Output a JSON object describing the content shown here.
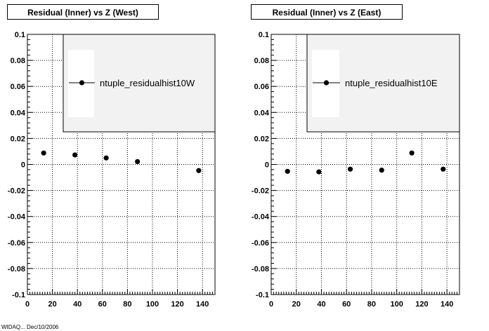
{
  "chart_data": [
    {
      "type": "scatter",
      "title": "Residual (Inner) vs Z (West)",
      "xlabel": "",
      "ylabel": "",
      "xlim": [
        0,
        150
      ],
      "ylim": [
        -0.1,
        0.1
      ],
      "xticks": [
        0,
        20,
        40,
        60,
        80,
        100,
        120,
        140
      ],
      "xtick_labels": [
        "0",
        "20",
        "40",
        "60",
        "80",
        "100",
        "120",
        "140"
      ],
      "yticks": [
        -0.1,
        -0.08,
        -0.06,
        -0.04,
        -0.02,
        0,
        0.02,
        0.04,
        0.06,
        0.08,
        0.1
      ],
      "ytick_labels": [
        "-0.1",
        "-0.08",
        "-0.06",
        "-0.04",
        "-0.02",
        "0",
        "0.02",
        "0.04",
        "0.06",
        "0.08",
        "0.1"
      ],
      "grid": true,
      "legend": "top-right",
      "series": [
        {
          "name": "ntuple_residualhist10W",
          "color": "#000000",
          "x": [
            13,
            38,
            63,
            88,
            137
          ],
          "y": [
            0.0088,
            0.0073,
            0.005,
            0.0022,
            -0.0047
          ]
        }
      ]
    },
    {
      "type": "scatter",
      "title": "Residual (Inner) vs Z (East)",
      "xlabel": "",
      "ylabel": "",
      "xlim": [
        0,
        150
      ],
      "ylim": [
        -0.1,
        0.1
      ],
      "xticks": [
        0,
        20,
        40,
        60,
        80,
        100,
        120,
        140
      ],
      "xtick_labels": [
        "0",
        "20",
        "40",
        "60",
        "80",
        "100",
        "120",
        "140"
      ],
      "yticks": [
        -0.1,
        -0.08,
        -0.06,
        -0.04,
        -0.02,
        0,
        0.02,
        0.04,
        0.06,
        0.08,
        0.1
      ],
      "ytick_labels": [
        "-0.1",
        "-0.08",
        "-0.06",
        "-0.04",
        "-0.02",
        "0",
        "0.02",
        "0.04",
        "0.06",
        "0.08",
        "0.1"
      ],
      "grid": true,
      "legend": "top-right",
      "series": [
        {
          "name": "ntuple_residualhist10E",
          "color": "#000000",
          "x": [
            13,
            38,
            63,
            88,
            112,
            137
          ],
          "y": [
            -0.0053,
            -0.0057,
            -0.0036,
            -0.0044,
            0.0088,
            -0.0036
          ]
        }
      ]
    }
  ],
  "colors": {
    "legend_fill": "#f2f2f2",
    "grid": "#000000",
    "marker": "#000000"
  },
  "footer": "WIDAQ... Dec/10/2006"
}
